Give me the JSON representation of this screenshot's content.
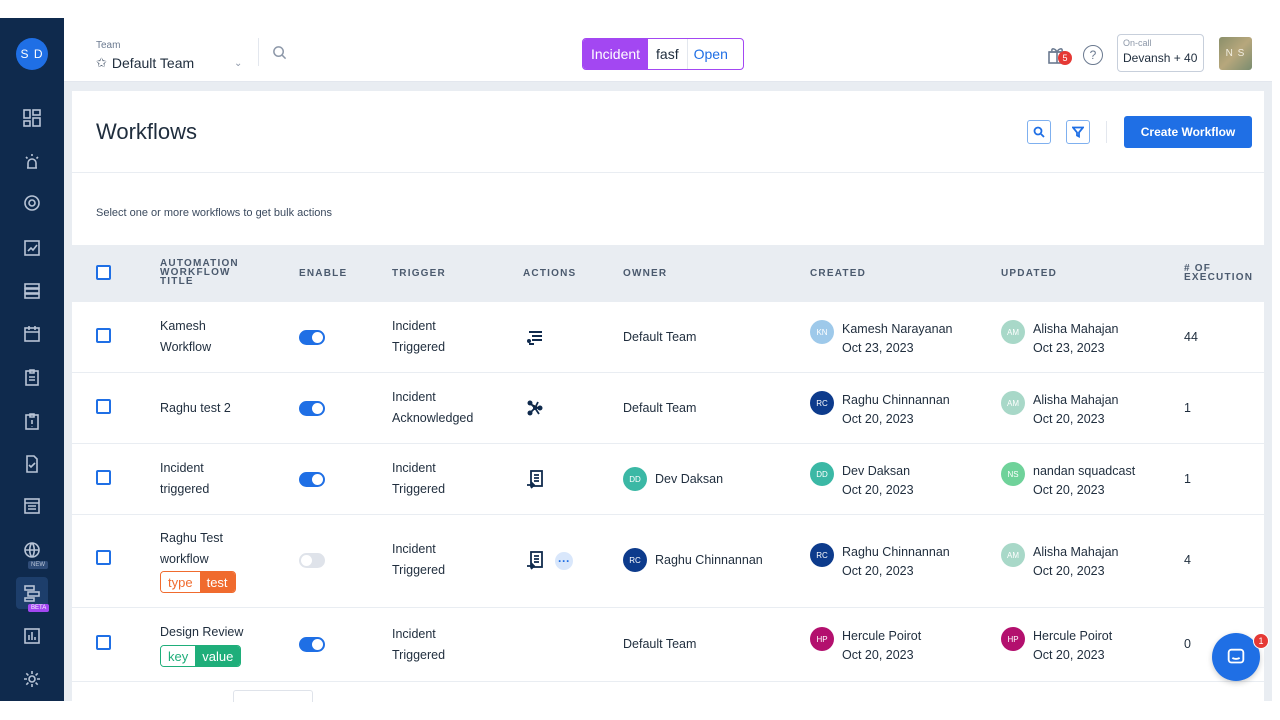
{
  "user": {
    "initials": "S D"
  },
  "sidebar": {
    "items": [
      {
        "icon": "dashboard-icon"
      },
      {
        "icon": "alert-bug-icon"
      },
      {
        "icon": "target-icon"
      },
      {
        "icon": "analytics-icon"
      },
      {
        "icon": "services-stack-icon"
      },
      {
        "icon": "calendar-icon"
      },
      {
        "icon": "clipboard-icon"
      },
      {
        "icon": "clipboard-alert-icon"
      },
      {
        "icon": "checklist-icon"
      },
      {
        "icon": "status-page-icon"
      },
      {
        "icon": "globe-icon",
        "badge": "NEW"
      },
      {
        "icon": "workflow-icon",
        "badge": "BETA"
      },
      {
        "icon": "reports-icon"
      },
      {
        "icon": "settings-icon"
      }
    ]
  },
  "topbar": {
    "team_label": "Team",
    "team_name": "Default Team",
    "incident_pill": {
      "type": "Incident",
      "name": "fasf",
      "status": "Open"
    },
    "gift_count": "5",
    "help": "?",
    "oncall_label": "On-call",
    "oncall_value": "Devansh + 40",
    "user_initials": "N S"
  },
  "page": {
    "title": "Workflows",
    "create_button": "Create Workflow",
    "bulk_hint": "Select one or more workflows to get bulk actions"
  },
  "table": {
    "headers": {
      "title_line1": "AUTOMATION",
      "title_line2": "WORKFLOW",
      "title_line3": "TITLE",
      "enable": "ENABLE",
      "trigger": "TRIGGER",
      "actions": "ACTIONS",
      "owner": "OWNER",
      "created": "CREATED",
      "updated": "UPDATED",
      "exec_line1": "# OF",
      "exec_line2": "EXECUTION"
    },
    "rows": [
      {
        "title_line1": "Kamesh",
        "title_line2": "Workflow",
        "enabled": true,
        "trigger_line1": "Incident",
        "trigger_line2": "Triggered",
        "owner": {
          "name": "Default Team"
        },
        "created": {
          "initials": "KN",
          "name": "Kamesh Narayanan",
          "date": "Oct 23, 2023",
          "color": "#9ec9ea"
        },
        "updated": {
          "initials": "AM",
          "name": "Alisha Mahajan",
          "date": "Oct 23, 2023",
          "color": "#a8d8c8"
        },
        "executions": "44"
      },
      {
        "title_line1": "Raghu test 2",
        "title_line2": "",
        "enabled": true,
        "trigger_line1": "Incident",
        "trigger_line2": "Acknowledged",
        "owner": {
          "name": "Default Team"
        },
        "created": {
          "initials": "RC",
          "name": "Raghu Chinnannan",
          "date": "Oct 20, 2023",
          "color": "#0d3b8c"
        },
        "updated": {
          "initials": "AM",
          "name": "Alisha Mahajan",
          "date": "Oct 20, 2023",
          "color": "#a8d8c8"
        },
        "executions": "1"
      },
      {
        "title_line1": "Incident",
        "title_line2": "triggered",
        "enabled": true,
        "trigger_line1": "Incident",
        "trigger_line2": "Triggered",
        "owner": {
          "initials": "DD",
          "name": "Dev Daksan",
          "color": "#3bb8a5"
        },
        "created": {
          "initials": "DD",
          "name": "Dev Daksan",
          "date": "Oct 20, 2023",
          "color": "#3bb8a5"
        },
        "updated": {
          "initials": "NS",
          "name": "nandan squadcast",
          "date": "Oct 20, 2023",
          "color": "#6fd29a"
        },
        "executions": "1"
      },
      {
        "title_line1": "Raghu Test",
        "title_line2": "workflow",
        "tag": {
          "key": "type",
          "value": "test"
        },
        "enabled": false,
        "trigger_line1": "Incident",
        "trigger_line2": "Triggered",
        "more": "···",
        "owner": {
          "initials": "RC",
          "name": "Raghu Chinnannan",
          "color": "#0d3b8c"
        },
        "created": {
          "initials": "RC",
          "name": "Raghu Chinnannan",
          "date": "Oct 20, 2023",
          "color": "#0d3b8c"
        },
        "updated": {
          "initials": "AM",
          "name": "Alisha Mahajan",
          "date": "Oct 20, 2023",
          "color": "#a8d8c8"
        },
        "executions": "4"
      },
      {
        "title_line1": "Design Review",
        "title_line2": "",
        "tag": {
          "key": "key",
          "value": "value"
        },
        "enabled": true,
        "trigger_line1": "Incident",
        "trigger_line2": "Triggered",
        "owner": {
          "name": "Default Team"
        },
        "created": {
          "initials": "HP",
          "name": "Hercule Poirot",
          "date": "Oct 20, 2023",
          "color": "#b3106e"
        },
        "updated": {
          "initials": "HP",
          "name": "Hercule Poirot",
          "date": "Oct 20, 2023",
          "color": "#b3106e"
        },
        "executions": "0"
      }
    ]
  },
  "chat": {
    "badge": "1"
  },
  "colors": {
    "brand": "#1f6fe5",
    "sidebar": "#0f2a4d",
    "incident": "#a347f2",
    "tag_orange": "#f06b2e",
    "tag_green": "#1fae7a"
  }
}
